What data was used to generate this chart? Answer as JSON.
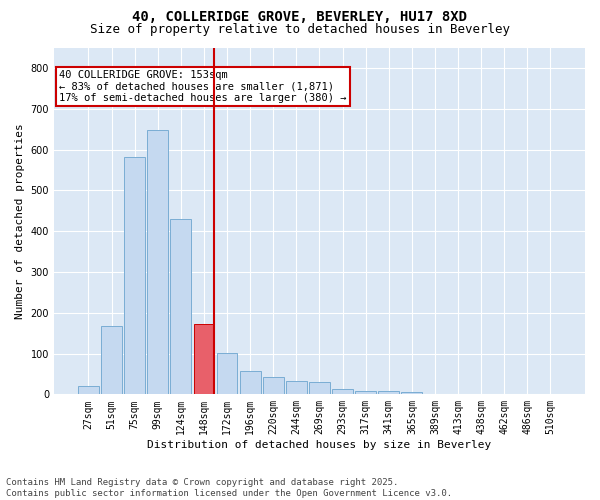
{
  "title": "40, COLLERIDGE GROVE, BEVERLEY, HU17 8XD",
  "subtitle": "Size of property relative to detached houses in Beverley",
  "xlabel": "Distribution of detached houses by size in Beverley",
  "ylabel": "Number of detached properties",
  "categories": [
    "27sqm",
    "51sqm",
    "75sqm",
    "99sqm",
    "124sqm",
    "148sqm",
    "172sqm",
    "196sqm",
    "220sqm",
    "244sqm",
    "269sqm",
    "293sqm",
    "317sqm",
    "341sqm",
    "365sqm",
    "389sqm",
    "413sqm",
    "438sqm",
    "462sqm",
    "486sqm",
    "510sqm"
  ],
  "values": [
    20,
    168,
    582,
    648,
    430,
    172,
    102,
    57,
    42,
    33,
    30,
    14,
    9,
    9,
    6,
    0,
    0,
    0,
    0,
    0,
    0
  ],
  "bar_color": "#c5d9f0",
  "bar_edge_color": "#7aadd4",
  "highlight_bar_index": 5,
  "highlight_bar_color": "#e8606a",
  "highlight_bar_edge_color": "#cc0000",
  "vline_color": "#cc0000",
  "annotation_text": "40 COLLERIDGE GROVE: 153sqm\n← 83% of detached houses are smaller (1,871)\n17% of semi-detached houses are larger (380) →",
  "annotation_box_color": "white",
  "annotation_box_edge_color": "#cc0000",
  "ylim": [
    0,
    850
  ],
  "yticks": [
    0,
    100,
    200,
    300,
    400,
    500,
    600,
    700,
    800
  ],
  "fig_background_color": "#ffffff",
  "plot_background_color": "#dce8f5",
  "grid_color": "#ffffff",
  "footer_text": "Contains HM Land Registry data © Crown copyright and database right 2025.\nContains public sector information licensed under the Open Government Licence v3.0.",
  "title_fontsize": 10,
  "subtitle_fontsize": 9,
  "axis_label_fontsize": 8,
  "tick_fontsize": 7,
  "annotation_fontsize": 7.5,
  "footer_fontsize": 6.5
}
